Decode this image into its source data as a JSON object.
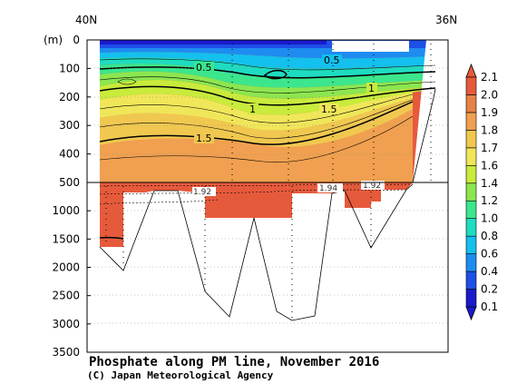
{
  "chart_data": {
    "type": "heatmap",
    "title": "Phosphate along PM line, November 2016",
    "credit": "(C) Japan Meteorological Agency",
    "x_top_labels": [
      "40N",
      "36N"
    ],
    "y_unit": "(m)",
    "y_ticks_upper": [
      0,
      100,
      200,
      300,
      400,
      500
    ],
    "y_ticks_lower": [
      500,
      1000,
      1500,
      2000,
      2500,
      3000,
      3500
    ],
    "contour_labels": [
      "0.5",
      "0.5",
      "1",
      "1",
      "1.5",
      "1.5",
      "1.92",
      "1.94",
      "1.92"
    ],
    "colorbar": {
      "levels": [
        0.1,
        0.2,
        0.4,
        0.6,
        0.8,
        1.0,
        1.2,
        1.4,
        1.6,
        1.7,
        1.8,
        1.9,
        2.0,
        2.1
      ],
      "labels": [
        "0.1",
        "0.2",
        "0.4",
        "0.6",
        "0.8",
        "1.0",
        "1.2",
        "1.4",
        "1.6",
        "1.7",
        "1.8",
        "1.9",
        "2.0",
        "2.1"
      ],
      "colors": [
        "#1a1acc",
        "#1e50e6",
        "#1e8cf0",
        "#14c0ee",
        "#1edcc0",
        "#3ce68c",
        "#8ce650",
        "#c8eb3c",
        "#f0e65a",
        "#f0c850",
        "#f0a050",
        "#e68246",
        "#e65a3c"
      ]
    }
  }
}
